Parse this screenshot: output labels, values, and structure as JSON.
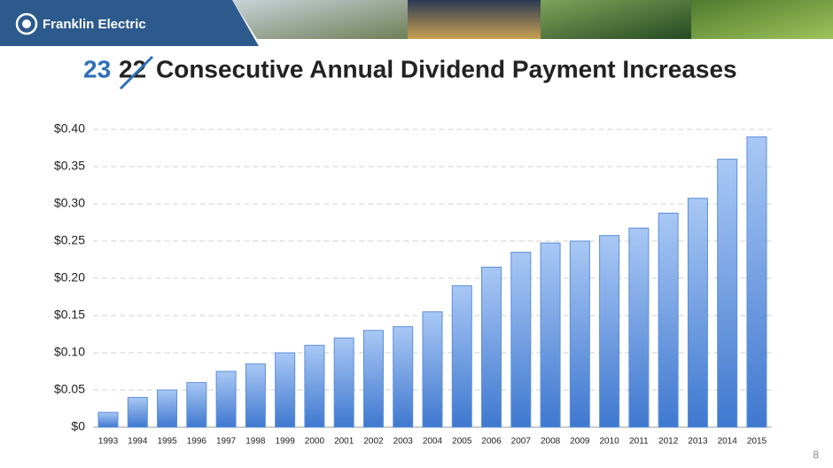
{
  "logo": "Franklin Electric",
  "page_number": "8",
  "chart_data": {
    "type": "bar",
    "title_count": "23",
    "title_struck_count": "22",
    "title": "Consecutive Annual Dividend Payment Increases",
    "categories": [
      "1993",
      "1994",
      "1995",
      "1996",
      "1997",
      "1998",
      "1999",
      "2000",
      "2001",
      "2002",
      "2003",
      "2004",
      "2005",
      "2006",
      "2007",
      "2008",
      "2009",
      "2010",
      "2011",
      "2012",
      "2013",
      "2014",
      "2015"
    ],
    "values": [
      0.02,
      0.04,
      0.05,
      0.06,
      0.075,
      0.085,
      0.1,
      0.11,
      0.12,
      0.13,
      0.135,
      0.155,
      0.19,
      0.215,
      0.235,
      0.2475,
      0.25,
      0.2575,
      0.2675,
      0.2875,
      0.3075,
      0.36,
      0.39
    ],
    "color": "#5b8fd9",
    "ylim": [
      0,
      0.4
    ],
    "yticks": [
      {
        "value": 0,
        "label": "$0"
      },
      {
        "value": 0.05,
        "label": "$0.05"
      },
      {
        "value": 0.1,
        "label": "$0.10"
      },
      {
        "value": 0.15,
        "label": "$0.15"
      },
      {
        "value": 0.2,
        "label": "$0.20"
      },
      {
        "value": 0.25,
        "label": "$0.25"
      },
      {
        "value": 0.3,
        "label": "$0.30"
      },
      {
        "value": 0.35,
        "label": "$0.35"
      },
      {
        "value": 0.4,
        "label": "$0.40"
      }
    ],
    "grid": true
  }
}
